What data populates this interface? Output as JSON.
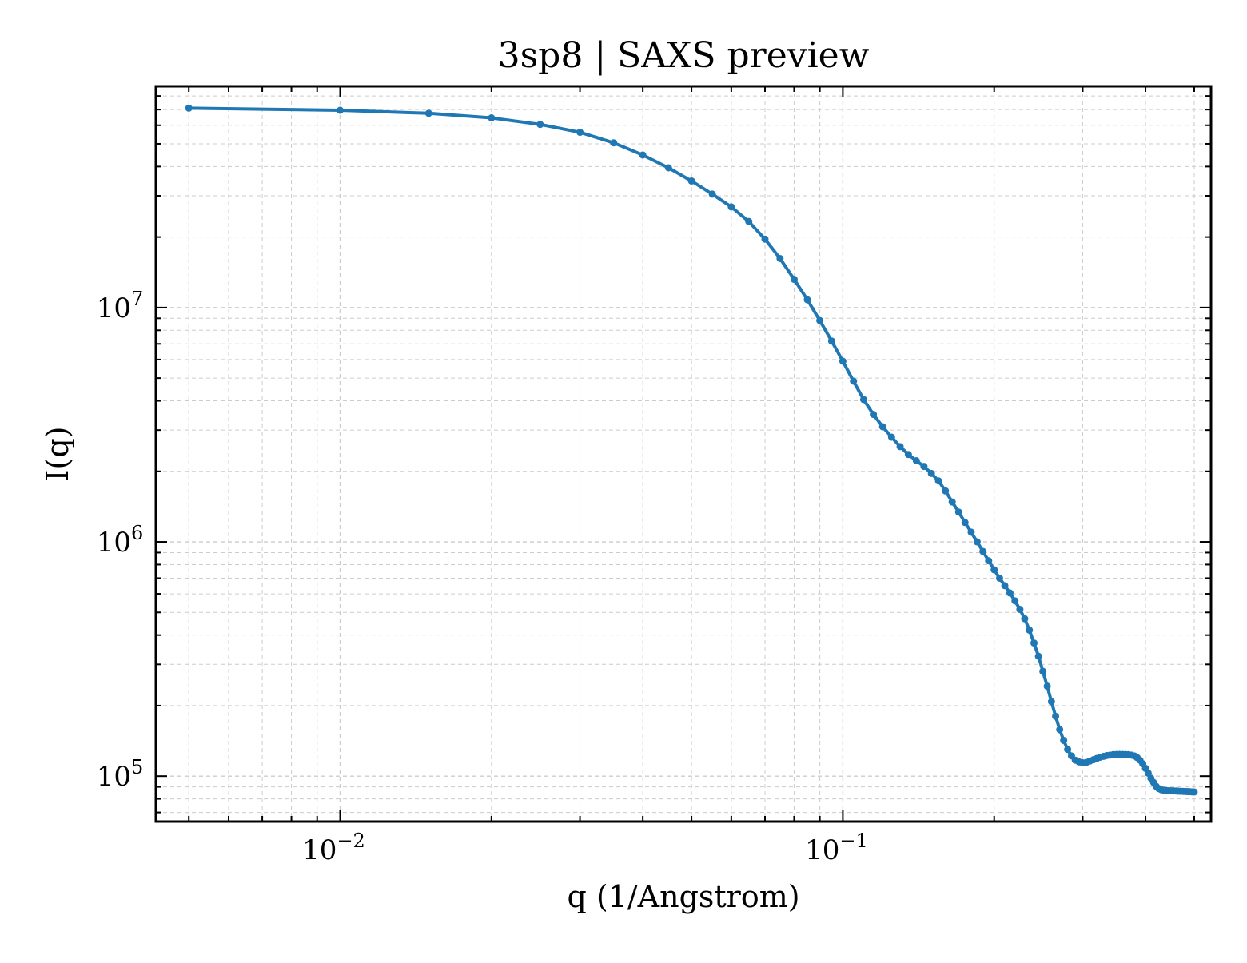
{
  "chart_data": {
    "type": "line",
    "title": "3sp8 | SAXS preview",
    "xlabel": "q (1/Angstrom)",
    "ylabel": "I(q)",
    "xscale": "log",
    "yscale": "log",
    "xlim": [
      0.0043,
      0.54
    ],
    "ylim": [
      64000,
      88000000
    ],
    "grid": true,
    "line_color": "#1f77b4",
    "x_ticks": [
      {
        "base": "10",
        "exp": "−2",
        "value": 0.01
      },
      {
        "base": "10",
        "exp": "−1",
        "value": 0.1
      }
    ],
    "y_ticks": [
      {
        "base": "10",
        "exp": "5",
        "value": 100000
      },
      {
        "base": "10",
        "exp": "6",
        "value": 1000000
      },
      {
        "base": "10",
        "exp": "7",
        "value": 10000000
      }
    ],
    "series": [
      {
        "x": [
          0.005,
          0.01,
          0.015,
          0.02,
          0.025,
          0.03,
          0.035,
          0.04,
          0.045,
          0.05,
          0.055,
          0.06,
          0.065,
          0.07,
          0.075,
          0.08,
          0.085,
          0.09,
          0.095,
          0.1,
          0.105,
          0.11,
          0.115,
          0.12,
          0.125,
          0.13,
          0.135,
          0.14,
          0.145,
          0.15,
          0.155,
          0.16,
          0.165,
          0.17,
          0.175,
          0.18,
          0.185,
          0.19,
          0.195,
          0.2,
          0.205,
          0.21,
          0.215,
          0.22,
          0.225,
          0.23,
          0.235,
          0.24,
          0.245,
          0.25,
          0.255,
          0.26,
          0.265,
          0.27,
          0.275,
          0.28,
          0.285,
          0.29,
          0.295,
          0.3,
          0.305,
          0.31,
          0.315,
          0.32,
          0.325,
          0.33,
          0.335,
          0.34,
          0.345,
          0.35,
          0.355,
          0.36,
          0.365,
          0.37,
          0.375,
          0.38,
          0.385,
          0.39,
          0.395,
          0.4,
          0.405,
          0.41,
          0.415,
          0.42,
          0.425,
          0.43,
          0.435,
          0.44,
          0.445,
          0.45,
          0.455,
          0.46,
          0.465,
          0.47,
          0.475,
          0.48,
          0.485,
          0.49,
          0.495,
          0.5
        ],
        "y": [
          71000000,
          69500000,
          67500000,
          64500000,
          60500000,
          56000000,
          50500000,
          44800000,
          39500000,
          34700000,
          30500000,
          26900000,
          23300000,
          19600000,
          16200000,
          13200000,
          10800000,
          8800000,
          7200000,
          5900000,
          4850000,
          4050000,
          3500000,
          3100000,
          2800000,
          2550000,
          2360000,
          2220000,
          2100000,
          1960000,
          1820000,
          1650000,
          1480000,
          1340000,
          1210000,
          1100000,
          1000000,
          910000,
          830000,
          760000,
          700000,
          650000,
          605000,
          560000,
          515000,
          470000,
          420000,
          370000,
          325000,
          280000,
          242000,
          208000,
          180000,
          158000,
          142000,
          130000,
          122000,
          117000,
          115000,
          114000,
          114500,
          116000,
          117500,
          119000,
          120500,
          121500,
          122500,
          123000,
          123500,
          123700,
          123800,
          123800,
          123700,
          123500,
          123000,
          122000,
          120000,
          117000,
          113000,
          108000,
          103000,
          98000,
          94000,
          90500,
          88500,
          87500,
          87000,
          86800,
          86700,
          86600,
          86500,
          86400,
          86300,
          86200,
          86100,
          86000,
          85900,
          85800,
          85700,
          85600
        ]
      }
    ]
  }
}
